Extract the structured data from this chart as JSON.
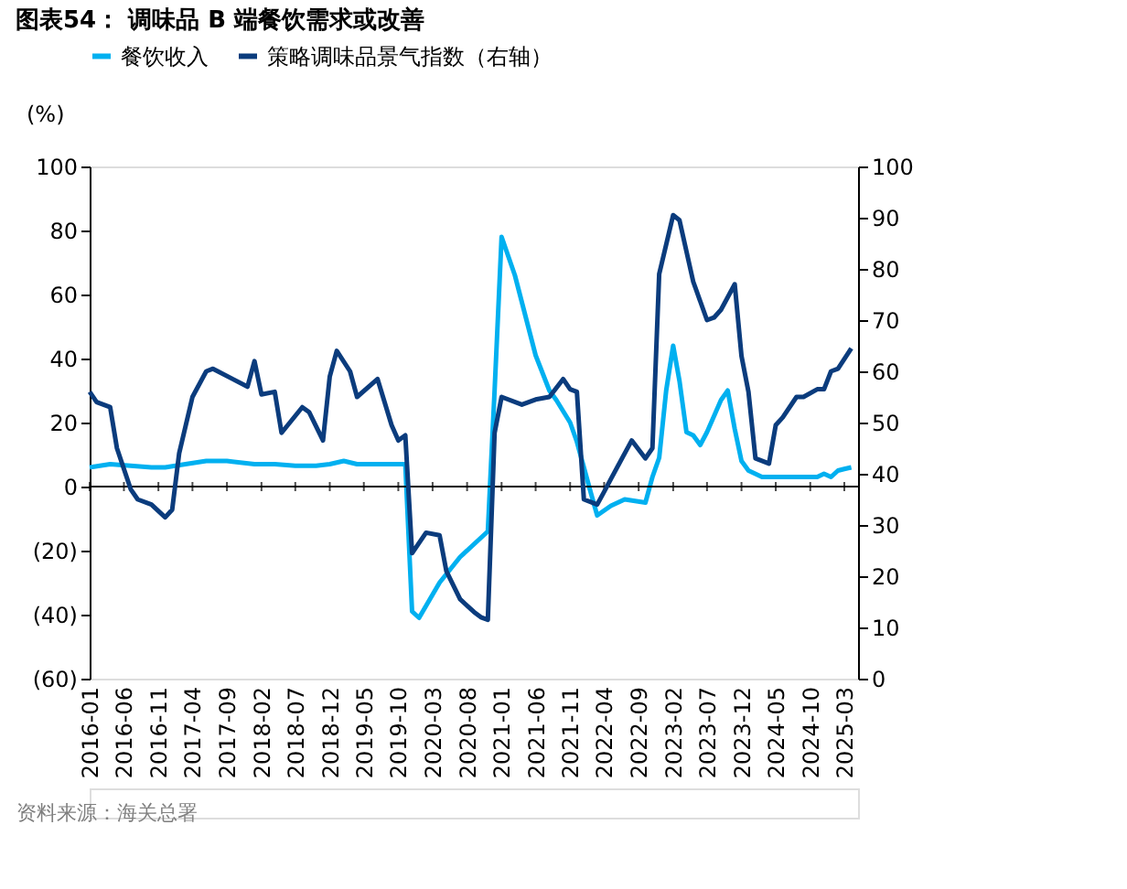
{
  "chart_data": {
    "type": "line",
    "title": "图表54： 调味品 B 端餐饮需求或改善",
    "ylabel": "(%)",
    "legend": "top",
    "grid": false,
    "marker": "none",
    "line_style": "solid",
    "xlim": [
      "2016-01",
      "2025-05"
    ],
    "xticks": [
      "2016-01",
      "2016-06",
      "2016-11",
      "2017-04",
      "2017-09",
      "2018-02",
      "2018-07",
      "2018-12",
      "2019-05",
      "2019-10",
      "2020-03",
      "2020-08",
      "2021-01",
      "2021-06",
      "2021-11",
      "2022-04",
      "2022-09",
      "2023-02",
      "2023-07",
      "2023-12",
      "2024-05",
      "2024-10",
      "2025-03"
    ],
    "ylim": [
      -60,
      100
    ],
    "yticks": [
      {
        "value": -60,
        "label": "(60)"
      },
      {
        "value": -40,
        "label": "(40)"
      },
      {
        "value": -20,
        "label": "(20)"
      },
      0,
      20,
      40,
      60,
      80,
      100
    ],
    "y2lim": [
      0,
      100
    ],
    "y2ticks": [
      0,
      10,
      20,
      30,
      40,
      50,
      60,
      70,
      80,
      90,
      100
    ],
    "ref_lines": [
      {
        "axis": "y",
        "value": 0,
        "color": "#000000"
      }
    ],
    "annotations": [
      "资料来源：海关总署"
    ],
    "series": [
      {
        "name": "餐饮收入",
        "color": "#00b0f0",
        "x": [
          "2016-01",
          "2016-04",
          "2016-07",
          "2016-10",
          "2016-12",
          "2017-03",
          "2017-06",
          "2017-09",
          "2018-01",
          "2018-04",
          "2018-07",
          "2018-10",
          "2018-12",
          "2019-02",
          "2019-04",
          "2019-08",
          "2019-11",
          "2019-12",
          "2020-01",
          "2020-04",
          "2020-07",
          "2020-11",
          "2020-12",
          "2021-01",
          "2021-03",
          "2021-06",
          "2021-08",
          "2021-09",
          "2021-11",
          "2021-12",
          "2022-02",
          "2022-03",
          "2022-05",
          "2022-07",
          "2022-10",
          "2022-11",
          "2022-12",
          "2023-01",
          "2023-02",
          "2023-03",
          "2023-04",
          "2023-05",
          "2023-06",
          "2023-07",
          "2023-09",
          "2023-10",
          "2023-11",
          "2023-12",
          "2024-01",
          "2024-03",
          "2024-07",
          "2024-09",
          "2024-11",
          "2024-12",
          "2025-01",
          "2025-02",
          "2025-03",
          "2025-04"
        ],
        "values": [
          6,
          7,
          6.5,
          6,
          6,
          7,
          8,
          8,
          7,
          7,
          6.5,
          6.5,
          7,
          8,
          7,
          7,
          7,
          -39,
          -41,
          -30,
          -22,
          -14,
          30,
          78,
          66,
          41,
          30,
          27,
          20,
          14,
          -2,
          -9,
          -6,
          -4,
          -5,
          3,
          9,
          30,
          44,
          33,
          17,
          16,
          13,
          17,
          27,
          30,
          18,
          8,
          5,
          3,
          3,
          3,
          3,
          4,
          3,
          5,
          5.5,
          6
        ]
      },
      {
        "name": "策略调味品景气指数（右轴）",
        "color": "#0b3c7d",
        "axis": "y2",
        "x": [
          "2016-01",
          "2016-02",
          "2016-04",
          "2016-05",
          "2016-07",
          "2016-08",
          "2016-10",
          "2016-12",
          "2017-01",
          "2017-02",
          "2017-04",
          "2017-06",
          "2017-07",
          "2017-12",
          "2018-01",
          "2018-02",
          "2018-04",
          "2018-05",
          "2018-08",
          "2018-09",
          "2018-11",
          "2018-12",
          "2019-01",
          "2019-03",
          "2019-04",
          "2019-07",
          "2019-09",
          "2019-10",
          "2019-11",
          "2019-12",
          "2020-02",
          "2020-04",
          "2020-05",
          "2020-07",
          "2020-09",
          "2020-10",
          "2020-11",
          "2020-12",
          "2021-01",
          "2021-04",
          "2021-06",
          "2021-08",
          "2021-10",
          "2021-11",
          "2021-12",
          "2022-01",
          "2022-03",
          "2022-04",
          "2022-05",
          "2022-08",
          "2022-10",
          "2022-11",
          "2022-12",
          "2023-02",
          "2023-03",
          "2023-05",
          "2023-07",
          "2023-08",
          "2023-09",
          "2023-11",
          "2023-12",
          "2024-01",
          "2024-02",
          "2024-04",
          "2024-05",
          "2024-06",
          "2024-08",
          "2024-09",
          "2024-11",
          "2024-12",
          "2025-01",
          "2025-02",
          "2025-04"
        ],
        "values": [
          56,
          54,
          53,
          45,
          37,
          35,
          34,
          31.5,
          33,
          44,
          55,
          60,
          60.5,
          57,
          62,
          55.5,
          56,
          48,
          53,
          52,
          46.5,
          59,
          64,
          60,
          55,
          58.5,
          49.5,
          46.5,
          47.5,
          24.5,
          28.5,
          28,
          21,
          15.5,
          13,
          12,
          11.5,
          48,
          55,
          53.5,
          54.5,
          55,
          58.5,
          56.5,
          56,
          35,
          34,
          36.5,
          39,
          46.5,
          43,
          45,
          79,
          90.5,
          89.5,
          77.5,
          70,
          70.5,
          72,
          77,
          63,
          56,
          43,
          42,
          49.5,
          51,
          55,
          55,
          56.5,
          56.5,
          60,
          60.5,
          64.5
        ]
      }
    ]
  }
}
